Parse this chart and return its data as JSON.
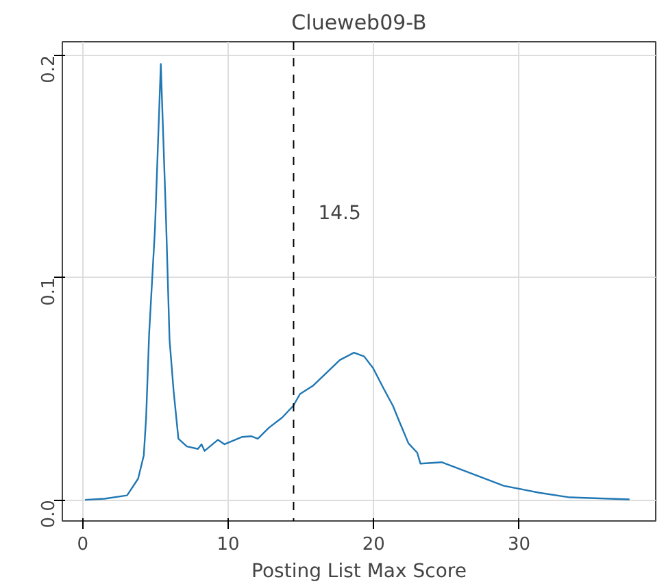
{
  "chart_data": {
    "type": "line",
    "title": "Clueweb09-B",
    "xlabel": "Posting List Max Score",
    "x": [
      0.16,
      1.5,
      3.05,
      3.81,
      4.2,
      4.36,
      4.57,
      4.97,
      5.37,
      5.73,
      5.97,
      6.25,
      6.58,
      7.16,
      7.92,
      8.17,
      8.38,
      9.3,
      9.75,
      10.97,
      11.58,
      12.04,
      12.8,
      13.71,
      14.48,
      14.94,
      15.85,
      16.76,
      17.68,
      18.65,
      19.35,
      19.96,
      20.72,
      21.33,
      21.79,
      22.4,
      23.0,
      23.22,
      24.68,
      26.82,
      28.95,
      31.39,
      33.5,
      37.6
    ],
    "series": [
      {
        "color": "#1f77b4",
        "values": [
          0.0,
          0.0005,
          0.002,
          0.0095,
          0.02,
          0.037,
          0.075,
          0.122,
          0.196,
          0.126,
          0.072,
          0.049,
          0.0275,
          0.024,
          0.0229,
          0.025,
          0.022,
          0.027,
          0.025,
          0.0283,
          0.0286,
          0.0275,
          0.0324,
          0.037,
          0.0423,
          0.0476,
          0.0514,
          0.0571,
          0.0629,
          0.0662,
          0.0645,
          0.0593,
          0.0497,
          0.0423,
          0.0349,
          0.0254,
          0.0212,
          0.0163,
          0.0169,
          0.0116,
          0.0063,
          0.0032,
          0.0011,
          0.0002
        ]
      }
    ],
    "xlim": [
      -1.4,
      39.4
    ],
    "ylim": [
      -0.0095,
      0.206
    ],
    "xticks": [
      0,
      10,
      20,
      30
    ],
    "yticks": [
      {
        "value": 0,
        "label": "0.0"
      },
      {
        "value": 0.1,
        "label": "0.1"
      },
      {
        "value": 0.2,
        "label": "0.2"
      }
    ],
    "ref_lines": [
      {
        "axis": "x",
        "value": 14.5,
        "label": "14.5",
        "color": "#000000",
        "line_style": "dashed"
      }
    ],
    "grid": true,
    "marker": "none",
    "line_style": "solid"
  }
}
